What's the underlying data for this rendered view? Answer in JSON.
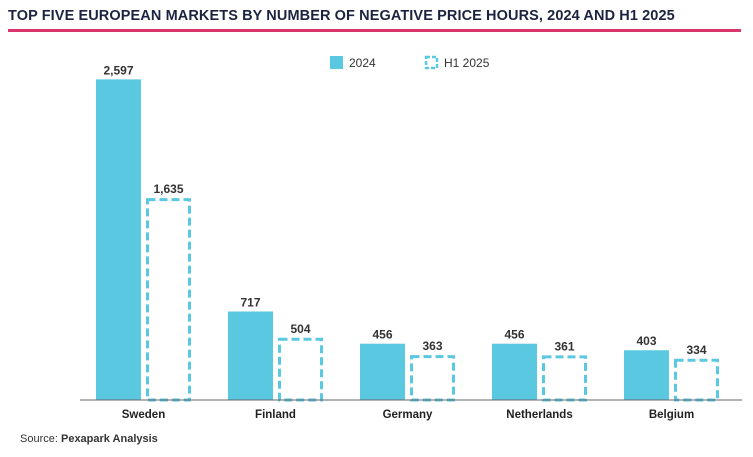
{
  "header": {
    "title": "TOP FIVE EUROPEAN MARKETS BY NUMBER OF NEGATIVE PRICE HOURS, 2024 AND H1 2025"
  },
  "footer": {
    "source_prefix": "Source:",
    "source_name": "Pexapark Analysis"
  },
  "colors": {
    "accent": "#5bc8e2",
    "title_rule": "#d9366b",
    "axis": "#666666"
  },
  "chart_data": {
    "type": "bar",
    "categories": [
      "Sweden",
      "Finland",
      "Germany",
      "Netherlands",
      "Belgium"
    ],
    "series": [
      {
        "name": "2024",
        "style": "solid",
        "values": [
          2597,
          717,
          456,
          456,
          403
        ],
        "labels": [
          "2,597",
          "717",
          "456",
          "456",
          "403"
        ]
      },
      {
        "name": "H1 2025",
        "style": "dashed",
        "values": [
          1635,
          504,
          363,
          361,
          334
        ],
        "labels": [
          "1,635",
          "504",
          "363",
          "361",
          "334"
        ]
      }
    ],
    "ylim": [
      0,
      2600
    ],
    "grid": false,
    "legend_position": "top-center",
    "title": "TOP FIVE EUROPEAN MARKETS BY NUMBER OF NEGATIVE PRICE HOURS, 2024 AND H1 2025",
    "xlabel": "",
    "ylabel": ""
  }
}
